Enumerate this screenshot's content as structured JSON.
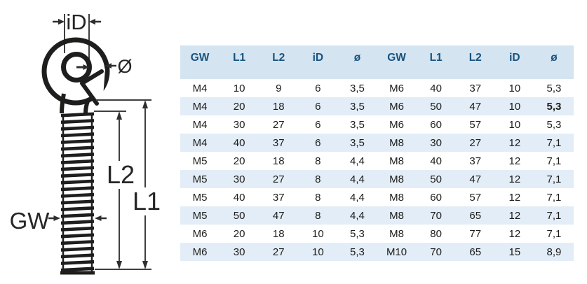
{
  "diagram": {
    "labels": {
      "inner_diameter": "iD",
      "wire_diameter": "Ø",
      "thread": "GW",
      "thread_length": "L2",
      "total_length": "L1"
    }
  },
  "table": {
    "headers": [
      "GW",
      "L1",
      "L2",
      "iD",
      "ø",
      "GW",
      "L1",
      "L2",
      "iD",
      "ø"
    ],
    "rows": [
      [
        "M4",
        "10",
        "9",
        "6",
        "3,5",
        "M6",
        "40",
        "37",
        "10",
        "5,3"
      ],
      [
        "M4",
        "20",
        "18",
        "6",
        "3,5",
        "M6",
        "50",
        "47",
        "10",
        "5,3"
      ],
      [
        "M4",
        "30",
        "27",
        "6",
        "3,5",
        "M6",
        "60",
        "57",
        "10",
        "5,3"
      ],
      [
        "M4",
        "40",
        "37",
        "6",
        "3,5",
        "M8",
        "30",
        "27",
        "12",
        "7,1"
      ],
      [
        "M5",
        "20",
        "18",
        "8",
        "4,4",
        "M8",
        "40",
        "37",
        "12",
        "7,1"
      ],
      [
        "M5",
        "30",
        "27",
        "8",
        "4,4",
        "M8",
        "50",
        "47",
        "12",
        "7,1"
      ],
      [
        "M5",
        "40",
        "37",
        "8",
        "4,4",
        "M8",
        "60",
        "57",
        "12",
        "7,1"
      ],
      [
        "M5",
        "50",
        "47",
        "8",
        "4,4",
        "M8",
        "70",
        "65",
        "12",
        "7,1"
      ],
      [
        "M6",
        "20",
        "18",
        "10",
        "5,3",
        "M8",
        "80",
        "77",
        "12",
        "7,1"
      ],
      [
        "M6",
        "30",
        "27",
        "10",
        "5,3",
        "M10",
        "70",
        "65",
        "15",
        "8,9"
      ]
    ],
    "bold_cell": {
      "row": 1,
      "col": 9
    },
    "colors": {
      "header_bg": "#d4e4f1",
      "alt_row_bg": "#e2edf7",
      "header_text": "#17537f",
      "cell_text": "#1c1c1a"
    }
  }
}
